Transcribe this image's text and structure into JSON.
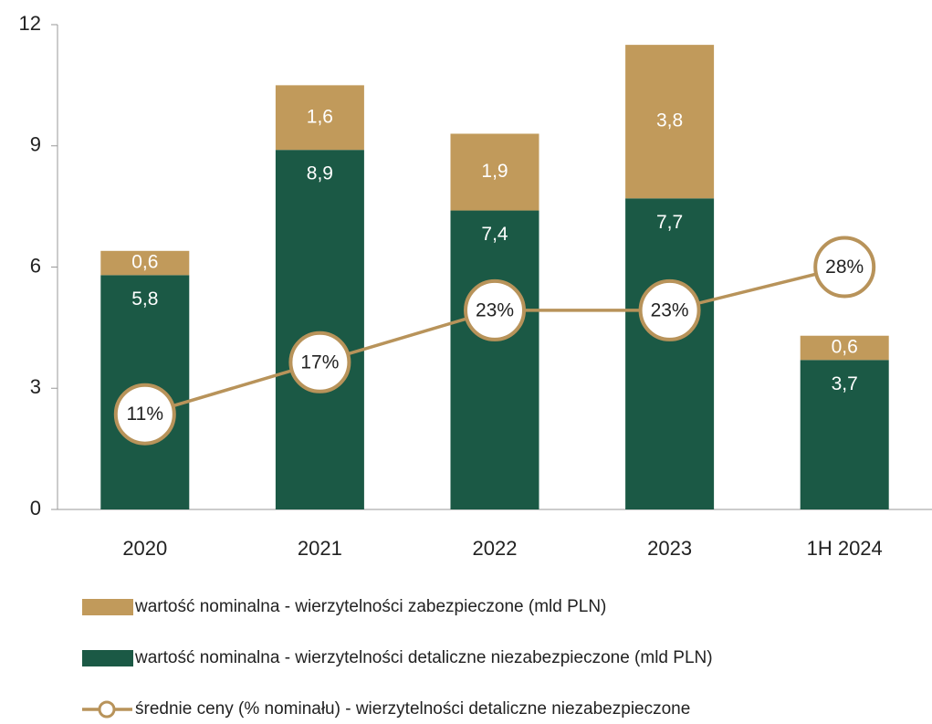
{
  "chart_data": {
    "type": "bar",
    "stacked": true,
    "categories": [
      "2020",
      "2021",
      "2022",
      "2023",
      "1H 2024"
    ],
    "series": [
      {
        "name": "wartość nominalna - wierzytelności detaliczne niezabezpieczone (mld PLN)",
        "color": "#1b5945",
        "values": [
          5.8,
          8.9,
          7.4,
          7.7,
          3.7
        ],
        "value_labels": [
          "5,8",
          "8,9",
          "7,4",
          "7,7",
          "3,7"
        ]
      },
      {
        "name": "wartość nominalna - wierzytelności zabezpieczone (mld PLN)",
        "color": "#c19a5b",
        "values": [
          0.6,
          1.6,
          1.9,
          3.8,
          0.6
        ],
        "value_labels": [
          "0,6",
          "1,6",
          "1,9",
          "3,8",
          "0,6"
        ]
      },
      {
        "name": "średnie ceny (% nominału) - wierzytelności detaliczne niezabezpieczone",
        "color": "#b8935a",
        "type": "line",
        "axis": "y2",
        "values": [
          11,
          17,
          23,
          23,
          28
        ],
        "value_labels": [
          "11%",
          "17%",
          "23%",
          "23%",
          "28%"
        ]
      }
    ],
    "ylim": [
      0,
      12
    ],
    "yticks": [
      0,
      3,
      6,
      9,
      12
    ],
    "y2lim": [
      0,
      56
    ],
    "grid": false
  }
}
